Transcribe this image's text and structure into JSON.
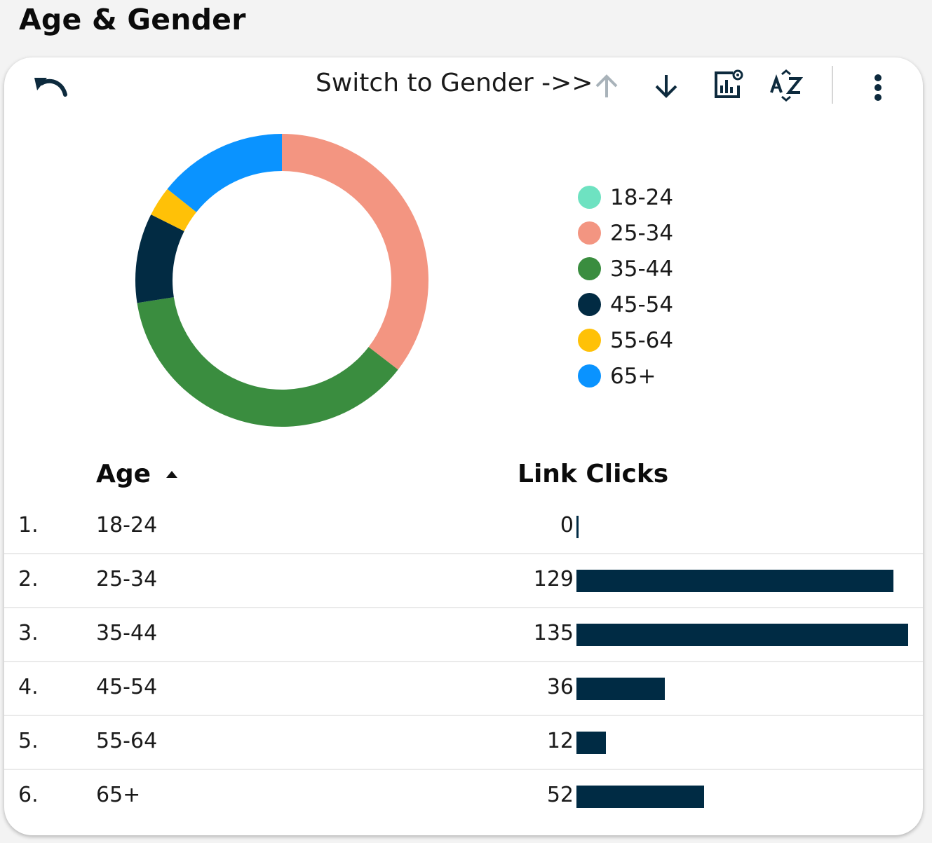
{
  "page": {
    "title": "Age & Gender"
  },
  "toolbar": {
    "switch_label": "Switch to Gender ->>",
    "icons": [
      "undo-icon",
      "arrow-up-icon",
      "arrow-down-icon",
      "chart-settings-icon",
      "sort-az-icon",
      "more-vert-icon"
    ]
  },
  "colors": {
    "18-24": "#6ee2c1",
    "25-34": "#f39581",
    "35-44": "#3a8d3f",
    "45-54": "#022b43",
    "55-64": "#ffc107",
    "65+": "#0a93ff",
    "bar": "#002b44"
  },
  "chart_data": {
    "type": "pie",
    "donut": true,
    "categories": [
      "18-24",
      "25-34",
      "35-44",
      "45-54",
      "55-64",
      "65+"
    ],
    "values": [
      0,
      129,
      135,
      36,
      12,
      52
    ],
    "legend_position": "right"
  },
  "legend": [
    {
      "label": "18-24"
    },
    {
      "label": "25-34"
    },
    {
      "label": "35-44"
    },
    {
      "label": "45-54"
    },
    {
      "label": "55-64"
    },
    {
      "label": "65+"
    }
  ],
  "table": {
    "headers": {
      "age": "Age",
      "clicks": "Link Clicks"
    },
    "sort": {
      "column": "Age",
      "direction": "ascending"
    },
    "rows": [
      {
        "index": "1.",
        "age": "18-24",
        "clicks": "0",
        "value": 0
      },
      {
        "index": "2.",
        "age": "25-34",
        "clicks": "129",
        "value": 129
      },
      {
        "index": "3.",
        "age": "35-44",
        "clicks": "135",
        "value": 135
      },
      {
        "index": "4.",
        "age": "45-54",
        "clicks": "36",
        "value": 36
      },
      {
        "index": "5.",
        "age": "55-64",
        "clicks": "12",
        "value": 12
      },
      {
        "index": "6.",
        "age": "65+",
        "clicks": "52",
        "value": 52
      }
    ]
  }
}
